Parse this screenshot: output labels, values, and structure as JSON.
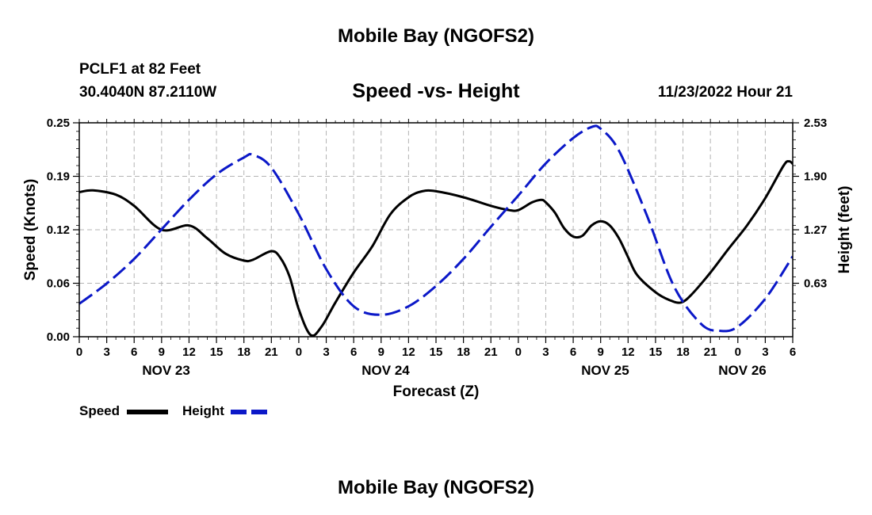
{
  "page": {
    "title_top": "Mobile Bay (NGOFS2)",
    "title_bottom": "Mobile Bay (NGOFS2)",
    "station_line": "PCLF1 at 82 Feet",
    "coords_line": "30.4040N  87.2110W",
    "subtitle": "Speed -vs- Height",
    "timestamp": "11/23/2022 Hour 21"
  },
  "legend": {
    "speed_label": "Speed",
    "height_label": "Height"
  },
  "chart_data": {
    "type": "line",
    "xlabel": "Forecast (Z)",
    "ylabel_left": "Speed (Knots)",
    "ylabel_right": "Height (feet)",
    "x_range_hours": [
      0,
      78
    ],
    "x_tick_step_hours": 3,
    "x_tick_labels": [
      "0",
      "3",
      "6",
      "9",
      "12",
      "15",
      "18",
      "21",
      "0",
      "3",
      "6",
      "9",
      "12",
      "15",
      "18",
      "21",
      "0",
      "3",
      "6",
      "9",
      "12",
      "15",
      "18",
      "21",
      "0",
      "3",
      "6"
    ],
    "date_labels": [
      {
        "label": "NOV 23",
        "hour": 9.5
      },
      {
        "label": "NOV 24",
        "hour": 33.5
      },
      {
        "label": "NOV 25",
        "hour": 57.5
      },
      {
        "label": "NOV 26",
        "hour": 72.5
      }
    ],
    "ylim_left": [
      0,
      0.25
    ],
    "yticks_left": [
      "0.00",
      "0.06",
      "0.12",
      "0.19",
      "0.25"
    ],
    "ylim_right": [
      0,
      2.53
    ],
    "yticks_right": [
      "0.63",
      "1.27",
      "1.90",
      "2.53"
    ],
    "grid": true,
    "series": [
      {
        "name": "Speed",
        "axis": "left",
        "color": "#000000",
        "dash": "solid",
        "points": [
          [
            0,
            0.169
          ],
          [
            1.5,
            0.171
          ],
          [
            4,
            0.166
          ],
          [
            6,
            0.153
          ],
          [
            9,
            0.125
          ],
          [
            12,
            0.13
          ],
          [
            14,
            0.115
          ],
          [
            16,
            0.097
          ],
          [
            18,
            0.089
          ],
          [
            19,
            0.09
          ],
          [
            21,
            0.1
          ],
          [
            22,
            0.092
          ],
          [
            23,
            0.07
          ],
          [
            24,
            0.032
          ],
          [
            25.3,
            0.002
          ],
          [
            26.5,
            0.012
          ],
          [
            28,
            0.04
          ],
          [
            30,
            0.075
          ],
          [
            32,
            0.105
          ],
          [
            34,
            0.143
          ],
          [
            36,
            0.163
          ],
          [
            37.5,
            0.17
          ],
          [
            39,
            0.17
          ],
          [
            42,
            0.163
          ],
          [
            45,
            0.153
          ],
          [
            47,
            0.148
          ],
          [
            48,
            0.148
          ],
          [
            49.5,
            0.157
          ],
          [
            50.5,
            0.16
          ],
          [
            51,
            0.157
          ],
          [
            52,
            0.145
          ],
          [
            53,
            0.127
          ],
          [
            54,
            0.117
          ],
          [
            55,
            0.118
          ],
          [
            56,
            0.13
          ],
          [
            57,
            0.135
          ],
          [
            58,
            0.13
          ],
          [
            59,
            0.115
          ],
          [
            60,
            0.093
          ],
          [
            61,
            0.072
          ],
          [
            63,
            0.052
          ],
          [
            64.5,
            0.043
          ],
          [
            65.8,
            0.04
          ],
          [
            67,
            0.05
          ],
          [
            69,
            0.075
          ],
          [
            71,
            0.103
          ],
          [
            73,
            0.13
          ],
          [
            75,
            0.162
          ],
          [
            77,
            0.2
          ],
          [
            77.6,
            0.205
          ],
          [
            78,
            0.202
          ]
        ]
      },
      {
        "name": "Height",
        "axis": "right",
        "color": "#0b18c8",
        "dash": "dashed",
        "points": [
          [
            0,
            0.39
          ],
          [
            3,
            0.63
          ],
          [
            6,
            0.92
          ],
          [
            9,
            1.27
          ],
          [
            12,
            1.62
          ],
          [
            15,
            1.92
          ],
          [
            18,
            2.12
          ],
          [
            19,
            2.15
          ],
          [
            21,
            2.0
          ],
          [
            24,
            1.45
          ],
          [
            27,
            0.8
          ],
          [
            30,
            0.36
          ],
          [
            33,
            0.26
          ],
          [
            36,
            0.36
          ],
          [
            39,
            0.6
          ],
          [
            42,
            0.92
          ],
          [
            45,
            1.3
          ],
          [
            48,
            1.67
          ],
          [
            51,
            2.05
          ],
          [
            54,
            2.35
          ],
          [
            56,
            2.48
          ],
          [
            57,
            2.46
          ],
          [
            59,
            2.2
          ],
          [
            62,
            1.45
          ],
          [
            65,
            0.6
          ],
          [
            68,
            0.15
          ],
          [
            70,
            0.07
          ],
          [
            72,
            0.12
          ],
          [
            75,
            0.45
          ],
          [
            78,
            0.95
          ]
        ]
      }
    ]
  }
}
